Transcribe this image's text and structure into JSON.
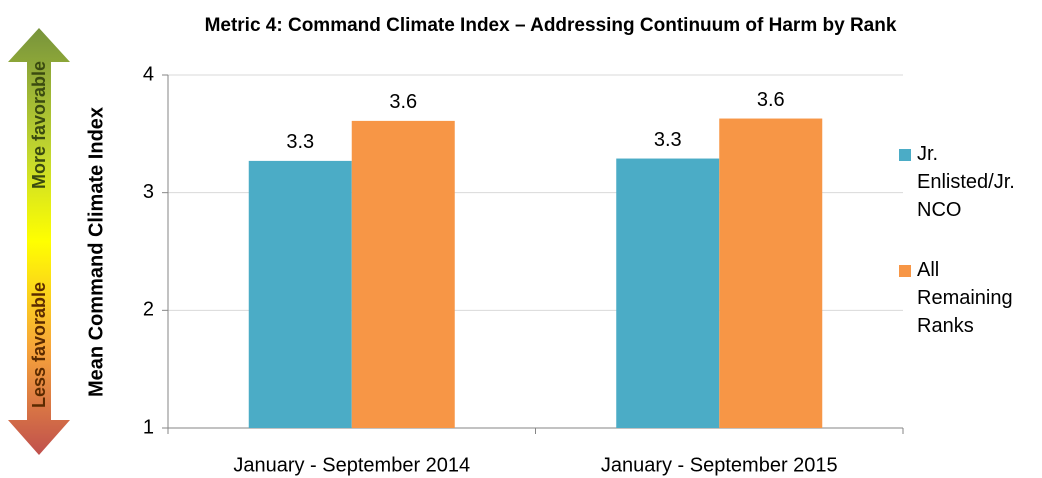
{
  "chart_data": {
    "type": "bar",
    "title": "Metric 4: Command Climate Index – Addressing Continuum of Harm  by Rank",
    "y_label": "Mean Command Climate Index",
    "annotations": [
      "More favorable",
      "Less favorable"
    ],
    "categories": [
      "January - September 2014",
      "January - September 2015"
    ],
    "series": [
      {
        "name": "Jr. Enlisted/Jr. NCO",
        "color": "#4bacc6",
        "values": [
          3.27,
          3.29
        ],
        "value_labels": [
          "3.3",
          "3.3"
        ]
      },
      {
        "name": "All Remaining Ranks",
        "color": "#f79646",
        "values": [
          3.61,
          3.63
        ],
        "value_labels": [
          "3.6",
          "3.6"
        ]
      }
    ],
    "ylim": [
      1,
      4
    ],
    "yticks": [
      1,
      2,
      3,
      4
    ],
    "grid": true,
    "legend": "right"
  }
}
